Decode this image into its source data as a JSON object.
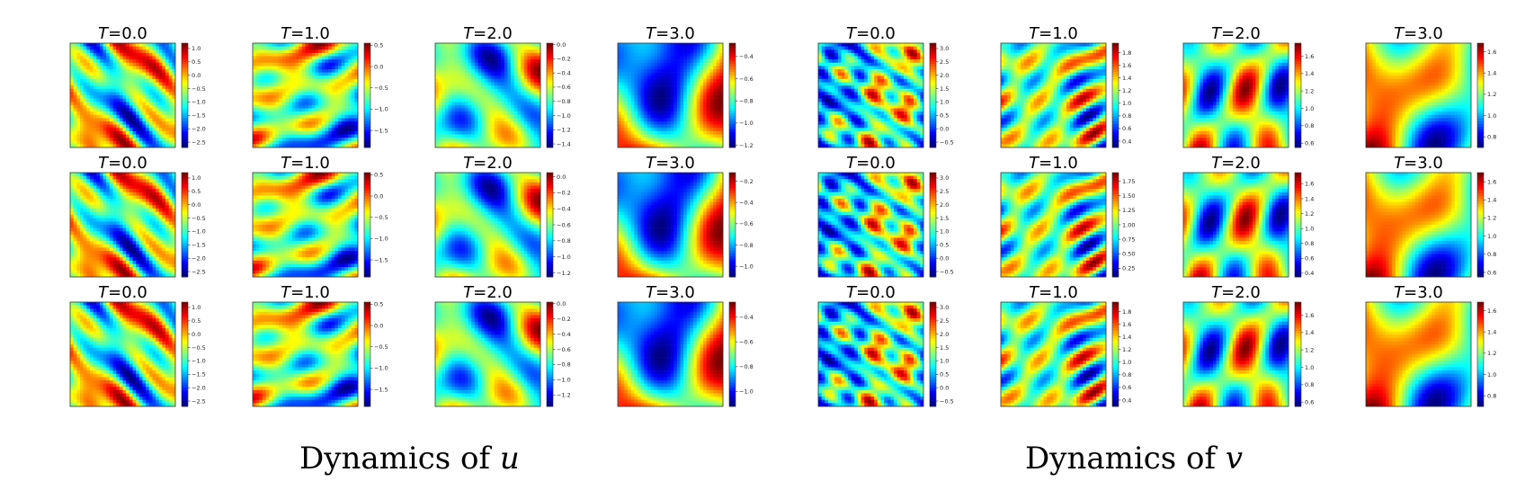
{
  "colormap": "jet",
  "chart_data": [
    {
      "type": "heatmap",
      "variable": "u",
      "caption": {
        "text": "Dynamics of",
        "var": "u"
      },
      "rows": [
        {
          "panels": [
            {
              "title": "T=0.0",
              "colorbar_ticks": [
                "1.0",
                "0.5",
                "0.0",
                "−0.5",
                "−1.0",
                "−1.5",
                "−2.0",
                "−2.5"
              ],
              "range": [
                -2.7,
                1.2
              ],
              "seed": 11
            },
            {
              "title": "T=1.0",
              "colorbar_ticks": [
                "0.5",
                "0.0",
                "−0.5",
                "−1.0",
                "−1.5"
              ],
              "range": [
                -1.9,
                0.55
              ],
              "seed": 12
            },
            {
              "title": "T=2.0",
              "colorbar_ticks": [
                "0.0",
                "−0.2",
                "−0.4",
                "−0.6",
                "−0.8",
                "−1.0",
                "−1.2",
                "−1.4"
              ],
              "range": [
                -1.45,
                0.02
              ],
              "seed": 13
            },
            {
              "title": "T=3.0",
              "colorbar_ticks": [
                "−0.4",
                "−0.6",
                "−0.8",
                "−1.0",
                "−1.2"
              ],
              "range": [
                -1.22,
                -0.28
              ],
              "seed": 14
            }
          ]
        },
        {
          "panels": [
            {
              "title": "T=0.0",
              "colorbar_ticks": [
                "1.0",
                "0.5",
                "0.0",
                "−0.5",
                "−1.0",
                "−1.5",
                "−2.0",
                "−2.5"
              ],
              "range": [
                -2.7,
                1.2
              ],
              "seed": 11
            },
            {
              "title": "T=1.0",
              "colorbar_ticks": [
                "0.5",
                "0.0",
                "−0.5",
                "−1.0",
                "−1.5"
              ],
              "range": [
                -1.9,
                0.55
              ],
              "seed": 12
            },
            {
              "title": "T=2.0",
              "colorbar_ticks": [
                "0.0",
                "−0.2",
                "−0.4",
                "−0.6",
                "−0.8",
                "−1.0",
                "−1.2"
              ],
              "range": [
                -1.25,
                0.05
              ],
              "seed": 13
            },
            {
              "title": "T=3.0",
              "colorbar_ticks": [
                "−0.2",
                "−0.4",
                "−0.6",
                "−0.8",
                "−1.0"
              ],
              "range": [
                -1.1,
                -0.12
              ],
              "seed": 14
            }
          ]
        },
        {
          "panels": [
            {
              "title": "T=0.0",
              "colorbar_ticks": [
                "1.0",
                "0.5",
                "0.0",
                "−0.5",
                "−1.0",
                "−1.5",
                "−2.0",
                "−2.5"
              ],
              "range": [
                -2.7,
                1.2
              ],
              "seed": 11
            },
            {
              "title": "T=1.0",
              "colorbar_ticks": [
                "0.5",
                "0.0",
                "−0.5",
                "−1.0",
                "−1.5"
              ],
              "range": [
                -1.9,
                0.55
              ],
              "seed": 12
            },
            {
              "title": "T=2.0",
              "colorbar_ticks": [
                "0.0",
                "−0.2",
                "−0.4",
                "−0.6",
                "−0.8",
                "−1.0",
                "−1.2"
              ],
              "range": [
                -1.35,
                0.02
              ],
              "seed": 13
            },
            {
              "title": "T=3.0",
              "colorbar_ticks": [
                "−0.4",
                "−0.6",
                "−0.8",
                "−1.0"
              ],
              "range": [
                -1.12,
                -0.28
              ],
              "seed": 14
            }
          ]
        }
      ]
    },
    {
      "type": "heatmap",
      "variable": "v",
      "caption": {
        "text": "Dynamics of",
        "var": "v"
      },
      "rows": [
        {
          "panels": [
            {
              "title": "T=0.0",
              "colorbar_ticks": [
                "3.0",
                "2.5",
                "2.0",
                "1.5",
                "1.0",
                "0.5",
                "0.0",
                "−0.5"
              ],
              "range": [
                -0.7,
                3.2
              ],
              "seed": 21
            },
            {
              "title": "T=1.0",
              "colorbar_ticks": [
                "1.8",
                "1.6",
                "1.4",
                "1.2",
                "1.0",
                "0.8",
                "0.6",
                "0.4"
              ],
              "range": [
                0.3,
                1.95
              ],
              "seed": 22
            },
            {
              "title": "T=2.0",
              "colorbar_ticks": [
                "1.6",
                "1.4",
                "1.2",
                "1.0",
                "0.8",
                "0.6"
              ],
              "range": [
                0.55,
                1.75
              ],
              "seed": 23
            },
            {
              "title": "T=3.0",
              "colorbar_ticks": [
                "1.6",
                "1.4",
                "1.2",
                "1.0",
                "0.8"
              ],
              "range": [
                0.7,
                1.68
              ],
              "seed": 24
            }
          ]
        },
        {
          "panels": [
            {
              "title": "T=0.0",
              "colorbar_ticks": [
                "3.0",
                "2.5",
                "2.0",
                "1.5",
                "1.0",
                "0.5",
                "0.0",
                "−0.5"
              ],
              "range": [
                -0.7,
                3.2
              ],
              "seed": 21
            },
            {
              "title": "T=1.0",
              "colorbar_ticks": [
                "1.75",
                "1.50",
                "1.25",
                "1.00",
                "0.75",
                "0.50",
                "0.25"
              ],
              "range": [
                0.1,
                1.9
              ],
              "seed": 22
            },
            {
              "title": "T=2.0",
              "colorbar_ticks": [
                "1.6",
                "1.4",
                "1.2",
                "1.0",
                "0.8",
                "0.6",
                "0.4"
              ],
              "range": [
                0.35,
                1.75
              ],
              "seed": 23
            },
            {
              "title": "T=3.0",
              "colorbar_ticks": [
                "1.6",
                "1.4",
                "1.2",
                "1.0",
                "0.8",
                "0.6"
              ],
              "range": [
                0.55,
                1.7
              ],
              "seed": 24
            }
          ]
        },
        {
          "panels": [
            {
              "title": "T=0.0",
              "colorbar_ticks": [
                "3.0",
                "2.5",
                "2.0",
                "1.5",
                "1.0",
                "0.5",
                "0.0",
                "−0.5"
              ],
              "range": [
                -0.7,
                3.2
              ],
              "seed": 21
            },
            {
              "title": "T=1.0",
              "colorbar_ticks": [
                "1.8",
                "1.6",
                "1.4",
                "1.2",
                "1.0",
                "0.8",
                "0.6",
                "0.4"
              ],
              "range": [
                0.3,
                1.95
              ],
              "seed": 22
            },
            {
              "title": "T=2.0",
              "colorbar_ticks": [
                "1.6",
                "1.4",
                "1.2",
                "1.0",
                "0.8",
                "0.6"
              ],
              "range": [
                0.55,
                1.75
              ],
              "seed": 23
            },
            {
              "title": "T=3.0",
              "colorbar_ticks": [
                "1.6",
                "1.4",
                "1.2",
                "1.0",
                "0.8"
              ],
              "range": [
                0.7,
                1.68
              ],
              "seed": 24
            }
          ]
        }
      ]
    }
  ]
}
